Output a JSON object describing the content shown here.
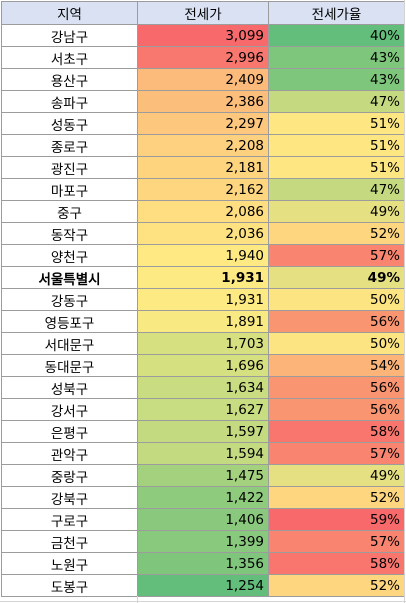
{
  "headers": [
    "지역",
    "전세가",
    "전세가율"
  ],
  "rows": [
    {
      "region": "강남구",
      "price": "3,099",
      "ratio": "40%",
      "price_color": "#f8696b",
      "ratio_color": "#63be7b"
    },
    {
      "region": "서초구",
      "price": "2,996",
      "ratio": "43%",
      "price_color": "#f8776e",
      "ratio_color": "#7fc67d"
    },
    {
      "region": "용산구",
      "price": "2,409",
      "ratio": "43%",
      "price_color": "#fcbb7b",
      "ratio_color": "#7fc67d"
    },
    {
      "region": "송파구",
      "price": "2,386",
      "ratio": "47%",
      "price_color": "#fcbe7b",
      "ratio_color": "#c5d980"
    },
    {
      "region": "성동구",
      "price": "2,297",
      "ratio": "51%",
      "price_color": "#fdc87d",
      "ratio_color": "#fee783"
    },
    {
      "region": "종로구",
      "price": "2,208",
      "ratio": "51%",
      "price_color": "#fdd17f",
      "ratio_color": "#fee783"
    },
    {
      "region": "광진구",
      "price": "2,181",
      "ratio": "51%",
      "price_color": "#fed47f",
      "ratio_color": "#fee783"
    },
    {
      "region": "마포구",
      "price": "2,162",
      "ratio": "47%",
      "price_color": "#fed680",
      "ratio_color": "#c5d980"
    },
    {
      "region": "중구",
      "price": "2,086",
      "ratio": "49%",
      "price_color": "#fede81",
      "ratio_color": "#e5e182"
    },
    {
      "region": "동작구",
      "price": "2,036",
      "ratio": "52%",
      "price_color": "#fee282",
      "ratio_color": "#fed680"
    },
    {
      "region": "양천구",
      "price": "1,940",
      "ratio": "57%",
      "price_color": "#fee983",
      "ratio_color": "#f98570"
    },
    {
      "region": "서울특별시",
      "price": "1,931",
      "ratio": "49%",
      "price_color": "#feea83",
      "ratio_color": "#e5e182",
      "bold": true
    },
    {
      "region": "강동구",
      "price": "1,931",
      "ratio": "50%",
      "price_color": "#feea83",
      "ratio_color": "#fde482"
    },
    {
      "region": "영등포구",
      "price": "1,891",
      "ratio": "56%",
      "price_color": "#f8e983",
      "ratio_color": "#fa9572"
    },
    {
      "region": "서대문구",
      "price": "1,703",
      "ratio": "50%",
      "price_color": "#d6e081",
      "ratio_color": "#fde482"
    },
    {
      "region": "동대문구",
      "price": "1,696",
      "ratio": "54%",
      "price_color": "#d5e081",
      "ratio_color": "#fcb479"
    },
    {
      "region": "성북구",
      "price": "1,634",
      "ratio": "56%",
      "price_color": "#c9dc81",
      "ratio_color": "#fa9572"
    },
    {
      "region": "강서구",
      "price": "1,627",
      "ratio": "56%",
      "price_color": "#c8dc81",
      "ratio_color": "#fa9572"
    },
    {
      "region": "은평구",
      "price": "1,597",
      "ratio": "58%",
      "price_color": "#c3da80",
      "ratio_color": "#f9766e"
    },
    {
      "region": "관악구",
      "price": "1,594",
      "ratio": "57%",
      "price_color": "#c3da80",
      "ratio_color": "#f98570"
    },
    {
      "region": "중랑구",
      "price": "1,475",
      "ratio": "49%",
      "price_color": "#a4d17e",
      "ratio_color": "#e5e182"
    },
    {
      "region": "강북구",
      "price": "1,422",
      "ratio": "52%",
      "price_color": "#8ecb7d",
      "ratio_color": "#fed680"
    },
    {
      "region": "구로구",
      "price": "1,406",
      "ratio": "59%",
      "price_color": "#8ac97d",
      "ratio_color": "#f8696b"
    },
    {
      "region": "금천구",
      "price": "1,399",
      "ratio": "57%",
      "price_color": "#88c97d",
      "ratio_color": "#f98570"
    },
    {
      "region": "노원구",
      "price": "1,356",
      "ratio": "58%",
      "price_color": "#7fc67c",
      "ratio_color": "#f9766e"
    },
    {
      "region": "도봉구",
      "price": "1,254",
      "ratio": "52%",
      "price_color": "#63be7b",
      "ratio_color": "#fed680"
    }
  ]
}
